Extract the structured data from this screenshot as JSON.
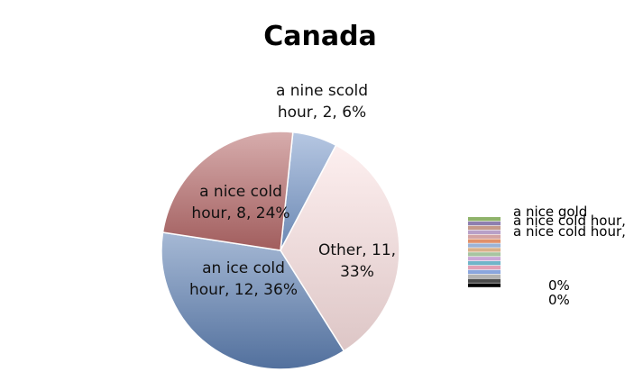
{
  "chart_data": {
    "type": "pie",
    "title": "Canada",
    "slices": [
      {
        "label": "a nine scold hour, 2, 6%",
        "lines": [
          "a nine scold",
          "hour, 2, 6%"
        ],
        "value": 2,
        "percent": 6,
        "color": "#7a9acb"
      },
      {
        "label": "Other, 11, 33%",
        "lines": [
          "Other, 11,",
          "33%"
        ],
        "value": 11,
        "percent": 33,
        "color": "#fbe1e1"
      },
      {
        "label": "an ice cold hour, 12, 36%",
        "lines": [
          "an ice cold",
          "hour, 12, 36%"
        ],
        "value": 12,
        "percent": 36,
        "color": "#5d7fb2"
      },
      {
        "label": "a nice cold hour, 8, 24%",
        "lines": [
          "a nice cold",
          "hour, 8, 24%"
        ],
        "value": 8,
        "percent": 24,
        "color": "#b76a6a"
      }
    ],
    "legend": {
      "placement": "right",
      "visible_text": [
        "a nice gold",
        "a nice cold hour,",
        "a nice cold hour,",
        "0%",
        "0%"
      ],
      "swatch_colors": [
        "#8fb36a",
        "#8e7fb0",
        "#c59a8a",
        "#b8a0c8",
        "#d3a3a3",
        "#e0906a",
        "#9bb3d6",
        "#d8b08a",
        "#a7c4a0",
        "#c9a6d6",
        "#6fb5c9",
        "#e1a0b5",
        "#8aa6de",
        "#b2b2b2",
        "#4a4a4a",
        "#000000"
      ]
    }
  }
}
